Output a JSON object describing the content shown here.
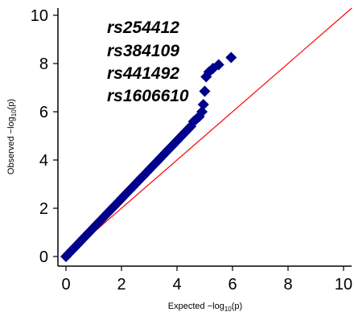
{
  "chart_data": {
    "type": "scatter",
    "title": "",
    "xlabel": {
      "prefix": "Expected",
      "minus_log": "−log",
      "sub": "10",
      "arg": "(p)"
    },
    "ylabel": {
      "prefix": "Observed",
      "minus_log": "−log",
      "sub": "10",
      "arg": "(p)"
    },
    "xlim": [
      -0.3,
      10.3
    ],
    "ylim": [
      -0.3,
      10.3
    ],
    "xticks": [
      "0",
      "2",
      "4",
      "6",
      "8",
      "10"
    ],
    "yticks": [
      "0",
      "2",
      "4",
      "6",
      "8",
      "10"
    ],
    "grid": false,
    "marker": "diamond",
    "point_color": "#00008b",
    "reference_line": {
      "x": [
        0,
        10.3
      ],
      "y": [
        0,
        10.3
      ],
      "color": "#ff0000"
    },
    "series": [
      {
        "x": [
          0,
          0.1,
          0.2,
          0.3,
          0.4,
          0.5,
          0.6,
          0.7,
          0.8,
          0.9,
          1.0,
          1.1,
          1.2,
          1.3,
          1.4,
          1.5,
          1.6,
          1.7,
          1.8,
          1.9,
          2.0,
          2.1,
          2.2,
          2.3,
          2.4,
          2.5,
          2.6,
          2.7,
          2.8,
          2.9,
          3.0,
          3.1,
          3.2,
          3.3,
          3.4,
          3.5,
          3.6,
          3.7,
          3.8,
          3.9,
          4.0,
          4.1,
          4.2,
          4.3,
          4.4,
          4.5,
          4.6,
          4.7,
          4.8,
          4.9,
          4.95,
          5.0,
          5.05,
          5.15,
          5.3,
          5.5,
          5.95
        ],
        "y": [
          0,
          0.12,
          0.24,
          0.36,
          0.48,
          0.6,
          0.72,
          0.84,
          0.96,
          1.08,
          1.2,
          1.32,
          1.44,
          1.56,
          1.68,
          1.8,
          1.92,
          2.04,
          2.16,
          2.28,
          2.4,
          2.52,
          2.64,
          2.76,
          2.88,
          3.0,
          3.12,
          3.24,
          3.36,
          3.48,
          3.6,
          3.72,
          3.84,
          3.96,
          4.08,
          4.2,
          4.32,
          4.44,
          4.56,
          4.68,
          4.8,
          4.92,
          5.04,
          5.16,
          5.28,
          5.4,
          5.6,
          5.7,
          5.8,
          6.0,
          6.3,
          6.85,
          7.45,
          7.65,
          7.8,
          7.95,
          8.25
        ]
      }
    ],
    "annotations": [
      "rs254412",
      "rs384109",
      "rs441492",
      "rs1606610"
    ]
  }
}
